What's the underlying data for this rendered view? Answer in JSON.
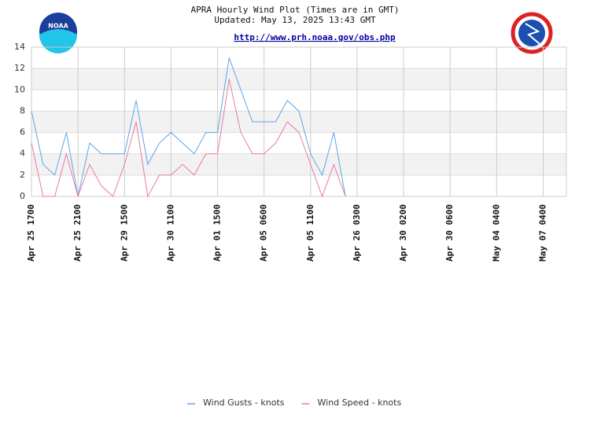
{
  "chart_data": {
    "type": "line",
    "title": "APRA Hourly Wind Plot (Times are in GMT)",
    "subtitle": "Updated: May 13, 2025 13:43 GMT",
    "link": "http://www.prh.noaa.gov/obs.php",
    "logo_text": "NOAA",
    "categories": [
      "Apr 25 1700",
      null,
      null,
      null,
      "Apr 25 2100",
      null,
      null,
      null,
      "Apr 29 1500",
      null,
      null,
      null,
      "Apr 30 1100",
      null,
      null,
      null,
      "Apr 01 1500",
      null,
      null,
      null,
      "Apr 05 0600",
      null,
      null,
      null,
      "Apr 05 1100",
      null,
      null,
      null,
      "Apr 26 0300",
      null,
      null,
      null,
      "Apr 30 0200",
      null,
      null,
      null,
      "Apr 30 0600",
      null,
      null,
      null,
      "May 04 0400",
      null,
      null,
      null,
      "May 07 0400",
      null,
      null
    ],
    "series": [
      {
        "name": "Wind Gusts - knots",
        "color": "#5da5e8",
        "values": [
          8,
          3,
          2,
          6,
          0,
          5,
          4,
          4,
          4,
          9,
          3,
          5,
          6,
          5,
          4,
          6,
          6,
          13,
          10,
          7,
          7,
          7,
          9,
          8,
          4,
          2,
          6,
          0,
          null,
          null,
          null,
          null,
          null,
          null,
          null,
          null,
          null,
          null,
          null,
          null,
          null,
          null,
          null,
          null,
          null,
          null,
          null
        ]
      },
      {
        "name": "Wind Speed - knots",
        "color": "#e87aa0",
        "values": [
          5,
          0,
          0,
          4,
          0,
          3,
          1,
          0,
          3,
          7,
          0,
          2,
          2,
          3,
          2,
          4,
          4,
          11,
          6,
          4,
          4,
          5,
          7,
          6,
          3,
          0,
          3,
          0,
          null,
          null,
          null,
          null,
          null,
          null,
          null,
          null,
          null,
          null,
          null,
          null,
          null,
          null,
          null,
          null,
          null,
          null,
          null
        ]
      }
    ],
    "ylim": [
      0,
      14
    ],
    "yticks": [
      0,
      2,
      4,
      6,
      8,
      10,
      12,
      14
    ],
    "grid": true,
    "banded": true,
    "legend": "bottom"
  }
}
